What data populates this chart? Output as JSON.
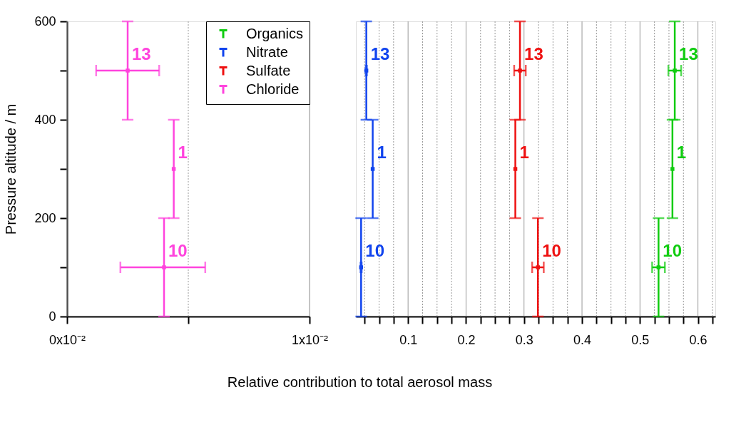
{
  "chart_data": [
    {
      "type": "scatter",
      "xlabel": "Relative contribution to total aerosol mass",
      "ylabel": "Pressure altitude / m",
      "xlim": [
        0,
        0.01
      ],
      "xticks": [
        {
          "value": 0,
          "label": "0x10⁻²"
        },
        {
          "value": 0.005,
          "label": null
        },
        {
          "value": 0.01,
          "label": "1x10⁻²"
        }
      ],
      "ylim": [
        0,
        600
      ],
      "yticks": [
        0,
        {
          "value": 100,
          "label": null
        },
        200,
        {
          "value": 300,
          "label": null
        },
        400,
        {
          "value": 500,
          "label": null
        },
        600
      ],
      "grid": "x",
      "legend": "top right",
      "marker": "square",
      "series": [
        {
          "name": "Chloride",
          "color": "#ff44dd",
          "x": [
            0.0025,
            0.0044,
            0.004
          ],
          "values": [
            500,
            300,
            100
          ],
          "errors": [
            100,
            100,
            100
          ],
          "xerrors": [
            [
              0.0012,
              0.0038
            ],
            null,
            [
              0.0022,
              0.0057
            ]
          ]
        }
      ],
      "annotations": [
        {
          "text": "13",
          "x": 0.0025,
          "y": 500
        },
        {
          "text": "1",
          "x": 0.0044,
          "y": 300
        },
        {
          "text": "10",
          "x": 0.004,
          "y": 100
        }
      ]
    },
    {
      "type": "scatter",
      "xlim": [
        0.01,
        0.63
      ],
      "xticks": [
        {
          "value": 0.025,
          "label": null
        },
        {
          "value": 0.05,
          "label": null
        },
        {
          "value": 0.075,
          "label": null
        },
        0.1,
        {
          "value": 0.125,
          "label": null
        },
        {
          "value": 0.15,
          "label": null
        },
        {
          "value": 0.175,
          "label": null
        },
        0.2,
        {
          "value": 0.225,
          "label": null
        },
        {
          "value": 0.25,
          "label": null
        },
        {
          "value": 0.275,
          "label": null
        },
        0.3,
        {
          "value": 0.325,
          "label": null
        },
        {
          "value": 0.35,
          "label": null
        },
        {
          "value": 0.375,
          "label": null
        },
        0.4,
        {
          "value": 0.425,
          "label": null
        },
        {
          "value": 0.45,
          "label": null
        },
        {
          "value": 0.475,
          "label": null
        },
        0.5,
        {
          "value": 0.525,
          "label": null
        },
        {
          "value": 0.55,
          "label": null
        },
        {
          "value": 0.575,
          "label": null
        },
        0.6,
        {
          "value": 0.625,
          "label": null
        }
      ],
      "ylim": [
        0,
        600
      ],
      "grid": "x",
      "tick_labels": "x",
      "marker": "square",
      "legend": "top left",
      "series": [
        {
          "name": "Organics",
          "color": "#11cc11",
          "x": [
            0.56,
            0.556,
            0.532
          ],
          "values": [
            500,
            300,
            100
          ],
          "errors": [
            100,
            100,
            100
          ],
          "xerrors": [
            0.011,
            null,
            0.011
          ]
        },
        {
          "name": "Nitrate",
          "color": "#1144ee",
          "x": [
            0.028,
            0.039,
            0.019
          ],
          "values": [
            500,
            300,
            100
          ],
          "errors": [
            100,
            100,
            100
          ],
          "xerrors": [
            0.001,
            null,
            0.001
          ]
        },
        {
          "name": "Sulfate",
          "color": "#ee1111",
          "x": [
            0.293,
            0.285,
            0.324
          ],
          "values": [
            500,
            300,
            100
          ],
          "errors": [
            100,
            100,
            100
          ],
          "xerrors": [
            0.01,
            null,
            0.01
          ]
        }
      ],
      "annotations": [
        {
          "text": "13",
          "x": 0.56,
          "y": 500
        },
        {
          "text": "1",
          "x": 0.556,
          "y": 300
        },
        {
          "text": "10",
          "x": 0.532,
          "y": 100
        },
        {
          "text": "13",
          "x": 0.028,
          "y": 500
        },
        {
          "text": "1",
          "x": 0.039,
          "y": 300
        },
        {
          "text": "10",
          "x": 0.019,
          "y": 100
        },
        {
          "text": "13",
          "x": 0.293,
          "y": 500
        },
        {
          "text": "1",
          "x": 0.285,
          "y": 300
        },
        {
          "text": "10",
          "x": 0.324,
          "y": 100
        }
      ]
    }
  ]
}
